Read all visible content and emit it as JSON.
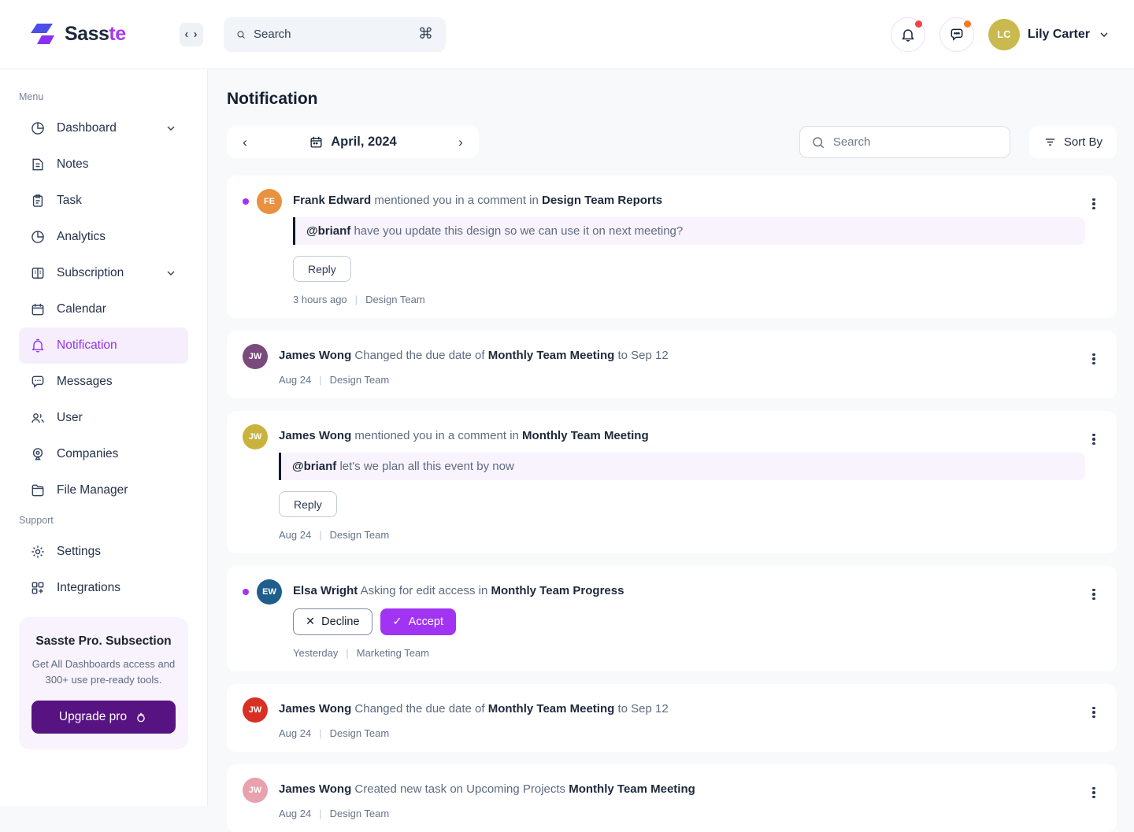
{
  "colors": {
    "accent_purple": "#9333ea",
    "bright_purple": "#a133f2",
    "active_bg": "#f6eefd",
    "upgrade_btn": "#561381",
    "unread_dot": "#a133f2",
    "badge_red": "#ee4444",
    "badge_orange": "#f9791e",
    "logo_indigo": "#4b4ee7",
    "logo_purple": "#8b30f3"
  },
  "brand": {
    "name_primary": "Sass",
    "name_accent": "te"
  },
  "topbar": {
    "collapse_glyph": "‹ ›",
    "search_placeholder": "Search",
    "shortcut_glyph": "⌘",
    "user_name": "Lily Carter",
    "user_initials": "LC",
    "user_avatar_color": "#c9b94e"
  },
  "sidebar": {
    "sections": [
      {
        "label": "Menu",
        "items": [
          {
            "label": "Dashboard",
            "icon": "pie-chart-icon",
            "expandable": true
          },
          {
            "label": "Notes",
            "icon": "note-icon"
          },
          {
            "label": "Task",
            "icon": "clipboard-icon"
          },
          {
            "label": "Analytics",
            "icon": "pie-chart-icon"
          },
          {
            "label": "Subscription",
            "icon": "card-icon",
            "expandable": true
          },
          {
            "label": "Calendar",
            "icon": "calendar-icon"
          },
          {
            "label": "Notification",
            "icon": "bell-icon",
            "active": true
          },
          {
            "label": "Messages",
            "icon": "chat-icon"
          },
          {
            "label": "User",
            "icon": "users-icon"
          },
          {
            "label": "Companies",
            "icon": "broadcast-icon"
          },
          {
            "label": "File Manager",
            "icon": "folder-icon"
          }
        ]
      },
      {
        "label": "Support",
        "items": [
          {
            "label": "Settings",
            "icon": "gear-icon"
          },
          {
            "label": "Integrations",
            "icon": "integrations-icon"
          }
        ]
      }
    ],
    "pro_card": {
      "title": "Sasste Pro. Subsection",
      "description": "Get All Dashboards access and 300+ use pre-ready tools.",
      "button_label": "Upgrade pro"
    }
  },
  "main": {
    "title": "Notification",
    "date_label": "April, 2024",
    "prev_glyph": "‹",
    "next_glyph": "›",
    "search_placeholder": "Search",
    "sort_label": "Sort By",
    "meta_separator": "|"
  },
  "notifications": [
    {
      "unread": true,
      "avatar_initials": "FE",
      "avatar_color": "#e8913f",
      "actor": "Frank Edward",
      "action": "mentioned you in a comment in",
      "object": "Design Team Reports",
      "quote_mention": "@brianf",
      "quote_text": "have you update this design so we can use it on next meeting?",
      "reply_label": "Reply",
      "time": "3 hours ago",
      "team": "Design Team"
    },
    {
      "unread": false,
      "avatar_initials": "JW",
      "avatar_color": "#7b4a7d",
      "actor": "James Wong",
      "action": "Changed the due date of",
      "object": "Monthly Team Meeting",
      "suffix": "to Sep 12",
      "time": "Aug 24",
      "team": "Design Team"
    },
    {
      "unread": false,
      "avatar_initials": "JW",
      "avatar_color": "#c9b33c",
      "actor": "James Wong",
      "action": "mentioned you in a comment in",
      "object": "Monthly Team Meeting",
      "quote_mention": "@brianf",
      "quote_text": "let's we plan all this event by now",
      "reply_label": "Reply",
      "time": "Aug 24",
      "team": "Design Team"
    },
    {
      "unread": true,
      "avatar_initials": "EW",
      "avatar_color": "#1f5e8c",
      "actor": "Elsa Wright",
      "action": "Asking for edit access in",
      "object": "Monthly Team Progress",
      "decline_label": "Decline",
      "accept_label": "Accept",
      "decline_glyph": "✕",
      "accept_glyph": "✓",
      "time": "Yesterday",
      "team": "Marketing Team"
    },
    {
      "unread": false,
      "avatar_initials": "JW",
      "avatar_color": "#d93025",
      "actor": "James Wong",
      "action": "Changed the due date of",
      "object": "Monthly Team Meeting",
      "suffix": "to Sep 12",
      "time": "Aug 24",
      "team": "Design Team"
    },
    {
      "unread": false,
      "avatar_initials": "JW",
      "avatar_color": "#e8a1ad",
      "actor": "James Wong",
      "action": "Created new task on Upcoming Projects",
      "object": "Monthly Team Meeting",
      "time": "Aug 24",
      "team": "Design Team"
    }
  ]
}
